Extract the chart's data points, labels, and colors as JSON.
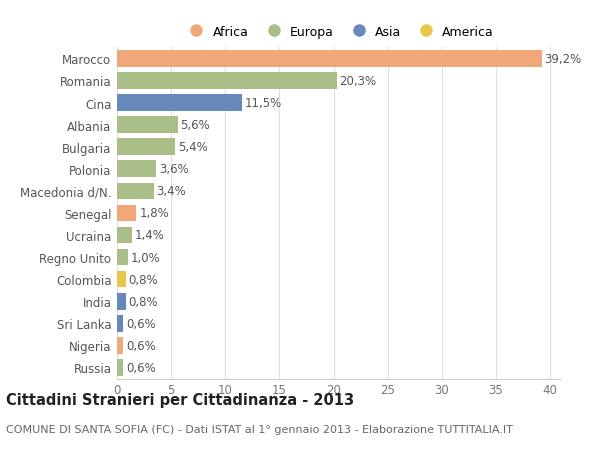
{
  "categories": [
    "Marocco",
    "Romania",
    "Cina",
    "Albania",
    "Bulgaria",
    "Polonia",
    "Macedonia d/N.",
    "Senegal",
    "Ucraina",
    "Regno Unito",
    "Colombia",
    "India",
    "Sri Lanka",
    "Nigeria",
    "Russia"
  ],
  "values": [
    39.2,
    20.3,
    11.5,
    5.6,
    5.4,
    3.6,
    3.4,
    1.8,
    1.4,
    1.0,
    0.8,
    0.8,
    0.6,
    0.6,
    0.6
  ],
  "labels": [
    "39,2%",
    "20,3%",
    "11,5%",
    "5,6%",
    "5,4%",
    "3,6%",
    "3,4%",
    "1,8%",
    "1,4%",
    "1,0%",
    "0,8%",
    "0,8%",
    "0,6%",
    "0,6%",
    "0,6%"
  ],
  "continents": [
    "Africa",
    "Europa",
    "Asia",
    "Europa",
    "Europa",
    "Europa",
    "Europa",
    "Africa",
    "Europa",
    "Europa",
    "America",
    "Asia",
    "Asia",
    "Africa",
    "Europa"
  ],
  "colors": {
    "Africa": "#F0A878",
    "Europa": "#AABF88",
    "Asia": "#6688BB",
    "America": "#E8C848"
  },
  "legend_order": [
    "Africa",
    "Europa",
    "Asia",
    "America"
  ],
  "title": "Cittadini Stranieri per Cittadinanza - 2013",
  "subtitle": "COMUNE DI SANTA SOFIA (FC) - Dati ISTAT al 1° gennaio 2013 - Elaborazione TUTTITALIA.IT",
  "xlim": [
    0,
    41
  ],
  "xticks": [
    0,
    5,
    10,
    15,
    20,
    25,
    30,
    35,
    40
  ],
  "background_color": "#ffffff",
  "grid_color": "#e0e0e0",
  "bar_height": 0.75,
  "label_fontsize": 8.5,
  "tick_fontsize": 8.5,
  "title_fontsize": 10.5,
  "subtitle_fontsize": 8
}
